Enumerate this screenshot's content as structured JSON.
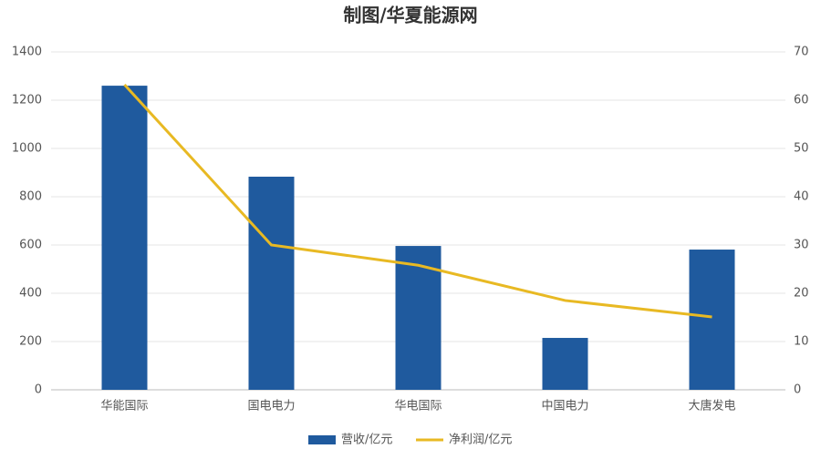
{
  "chart_data": {
    "type": "combo",
    "title": "制图/华夏能源网",
    "categories": [
      "华能国际",
      "国电电力",
      "华电国际",
      "中国电力",
      "大唐发电"
    ],
    "series": [
      {
        "name": "营收/亿元",
        "type": "bar",
        "color": "#1f5a9e",
        "values": [
          1260,
          883,
          596,
          215,
          581
        ]
      },
      {
        "name": "净利润/亿元",
        "type": "line",
        "color": "#e8b923",
        "axis": "y2",
        "values": [
          63.2,
          30,
          25.8,
          18.5,
          15.1
        ]
      }
    ],
    "ylim": [
      0,
      1400
    ],
    "yticks": [
      0,
      200,
      400,
      600,
      800,
      1000,
      1200,
      1400
    ],
    "y2lim": [
      0,
      70
    ],
    "y2ticks": [
      0,
      10,
      20,
      30,
      40,
      50,
      60,
      70
    ],
    "grid": true,
    "legend": "bottom"
  }
}
